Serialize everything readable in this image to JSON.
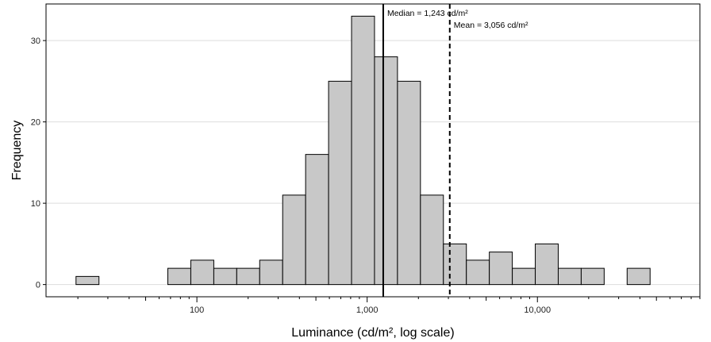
{
  "chart_data": {
    "type": "bar",
    "subtype": "histogram",
    "xlabel": "Luminance (cd/m², log scale)",
    "ylabel": "Frequency",
    "x_scale": "log10",
    "xlim": [
      13,
      90000
    ],
    "ylim": [
      -1.5,
      34.5
    ],
    "grid": {
      "horizontal": true,
      "vertical": false
    },
    "colors": {
      "bar_fill": "#c8c8c8",
      "bar_stroke": "#000000",
      "grid": "#dddddd"
    },
    "x_ticks": [
      {
        "value": 100,
        "label": "100"
      },
      {
        "value": 1000,
        "label": "1,000"
      },
      {
        "value": 10000,
        "label": "10,000"
      }
    ],
    "y_ticks": [
      {
        "value": 0,
        "label": "0"
      },
      {
        "value": 10,
        "label": "10"
      },
      {
        "value": 20,
        "label": "20"
      },
      {
        "value": 30,
        "label": "30"
      }
    ],
    "bins": [
      {
        "x0": 19.5,
        "x1": 26.6,
        "count": 1
      },
      {
        "x0": 26.6,
        "x1": 36.3,
        "count": 0
      },
      {
        "x0": 36.3,
        "x1": 49.5,
        "count": 0
      },
      {
        "x0": 49.5,
        "x1": 67.5,
        "count": 0
      },
      {
        "x0": 67.5,
        "x1": 92.1,
        "count": 2
      },
      {
        "x0": 92.1,
        "x1": 125.7,
        "count": 3
      },
      {
        "x0": 125.7,
        "x1": 171.4,
        "count": 2
      },
      {
        "x0": 171.4,
        "x1": 233.8,
        "count": 2
      },
      {
        "x0": 233.8,
        "x1": 319,
        "count": 3
      },
      {
        "x0": 319,
        "x1": 435.1,
        "count": 11
      },
      {
        "x0": 435.1,
        "x1": 593.6,
        "count": 16
      },
      {
        "x0": 593.6,
        "x1": 809.8,
        "count": 25
      },
      {
        "x0": 809.8,
        "x1": 1104.6,
        "count": 33
      },
      {
        "x0": 1104.6,
        "x1": 1507,
        "count": 28
      },
      {
        "x0": 1507,
        "x1": 2055.9,
        "count": 25
      },
      {
        "x0": 2055.9,
        "x1": 2804.6,
        "count": 11
      },
      {
        "x0": 2804.6,
        "x1": 3826.1,
        "count": 5
      },
      {
        "x0": 3826.1,
        "x1": 5219.5,
        "count": 3
      },
      {
        "x0": 5219.5,
        "x1": 7120.5,
        "count": 4
      },
      {
        "x0": 7120.5,
        "x1": 9713.6,
        "count": 2
      },
      {
        "x0": 9713.6,
        "x1": 13251.2,
        "count": 5
      },
      {
        "x0": 13251.2,
        "x1": 18077.3,
        "count": 2
      },
      {
        "x0": 18077.3,
        "x1": 24661,
        "count": 2
      },
      {
        "x0": 24661,
        "x1": 33642.4,
        "count": 0
      },
      {
        "x0": 33642.4,
        "x1": 45894.9,
        "count": 2
      }
    ],
    "reference_lines": [
      {
        "value": 1243,
        "style": "solid",
        "label": "Median = 1,243 cd/m²"
      },
      {
        "value": 3056,
        "style": "dashed",
        "label": "Mean = 3,056 cd/m²"
      }
    ]
  }
}
